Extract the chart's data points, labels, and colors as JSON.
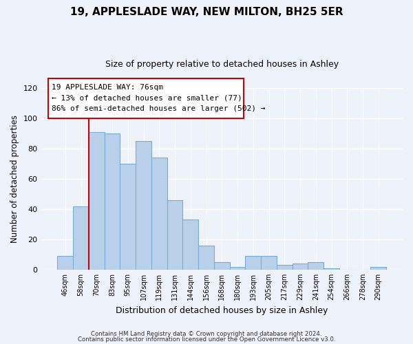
{
  "title": "19, APPLESLADE WAY, NEW MILTON, BH25 5ER",
  "subtitle": "Size of property relative to detached houses in Ashley",
  "xlabel": "Distribution of detached houses by size in Ashley",
  "ylabel": "Number of detached properties",
  "bar_labels": [
    "46sqm",
    "58sqm",
    "70sqm",
    "83sqm",
    "95sqm",
    "107sqm",
    "119sqm",
    "131sqm",
    "144sqm",
    "156sqm",
    "168sqm",
    "180sqm",
    "193sqm",
    "205sqm",
    "217sqm",
    "229sqm",
    "241sqm",
    "254sqm",
    "266sqm",
    "278sqm",
    "290sqm"
  ],
  "bar_values": [
    9,
    42,
    91,
    90,
    70,
    85,
    74,
    46,
    33,
    16,
    5,
    2,
    9,
    9,
    3,
    4,
    5,
    1,
    0,
    0,
    2
  ],
  "bar_color": "#b8d0ea",
  "bar_edge_color": "#7aacd4",
  "vline_color": "#cc0000",
  "annotation_line1": "19 APPLESLADE WAY: 76sqm",
  "annotation_line2": "← 13% of detached houses are smaller (77)",
  "annotation_line3": "86% of semi-detached houses are larger (502) →",
  "ylim": [
    0,
    120
  ],
  "yticks": [
    0,
    20,
    40,
    60,
    80,
    100,
    120
  ],
  "footer_line1": "Contains HM Land Registry data © Crown copyright and database right 2024.",
  "footer_line2": "Contains public sector information licensed under the Open Government Licence v3.0.",
  "background_color": "#eef2f9",
  "annotation_border_color": "#cc0000",
  "vline_bar_index": 2
}
